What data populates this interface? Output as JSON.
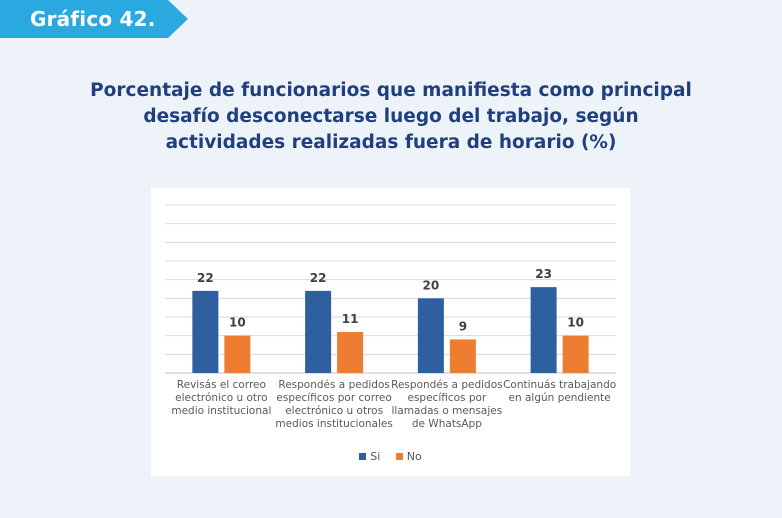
{
  "badge": {
    "label": "Gráfico 42."
  },
  "title": "Porcentaje de funcionarios que manifiesta como principal desafío desconectarse luego del trabajo, según actividades realizadas fuera de horario (%)",
  "colors": {
    "si": "#2e5f9e",
    "no": "#ed7d31",
    "badge": "#29a9e0",
    "title": "#1f3f7f"
  },
  "chart_data": {
    "type": "bar",
    "title": "Porcentaje de funcionarios que manifiesta como principal desafío desconectarse luego del trabajo, según actividades realizadas fuera de horario (%)",
    "categories": [
      [
        "Revisás el correo",
        "electrónico u otro",
        "medio institucional"
      ],
      [
        "Respondés a pedidos",
        "específicos por correo",
        "electrónico u otros",
        "medios institucionales"
      ],
      [
        "Respondés a pedidos",
        "específicos por",
        "llamadas o mensajes",
        "de WhatsApp"
      ],
      [
        "Continuás trabajando",
        "en algún pendiente"
      ]
    ],
    "series": [
      {
        "name": "Si",
        "values": [
          22,
          22,
          20,
          23
        ]
      },
      {
        "name": "No",
        "values": [
          10,
          11,
          9,
          10
        ]
      }
    ],
    "ylim": [
      0,
      45
    ],
    "grid": true,
    "legend": "bottom"
  }
}
